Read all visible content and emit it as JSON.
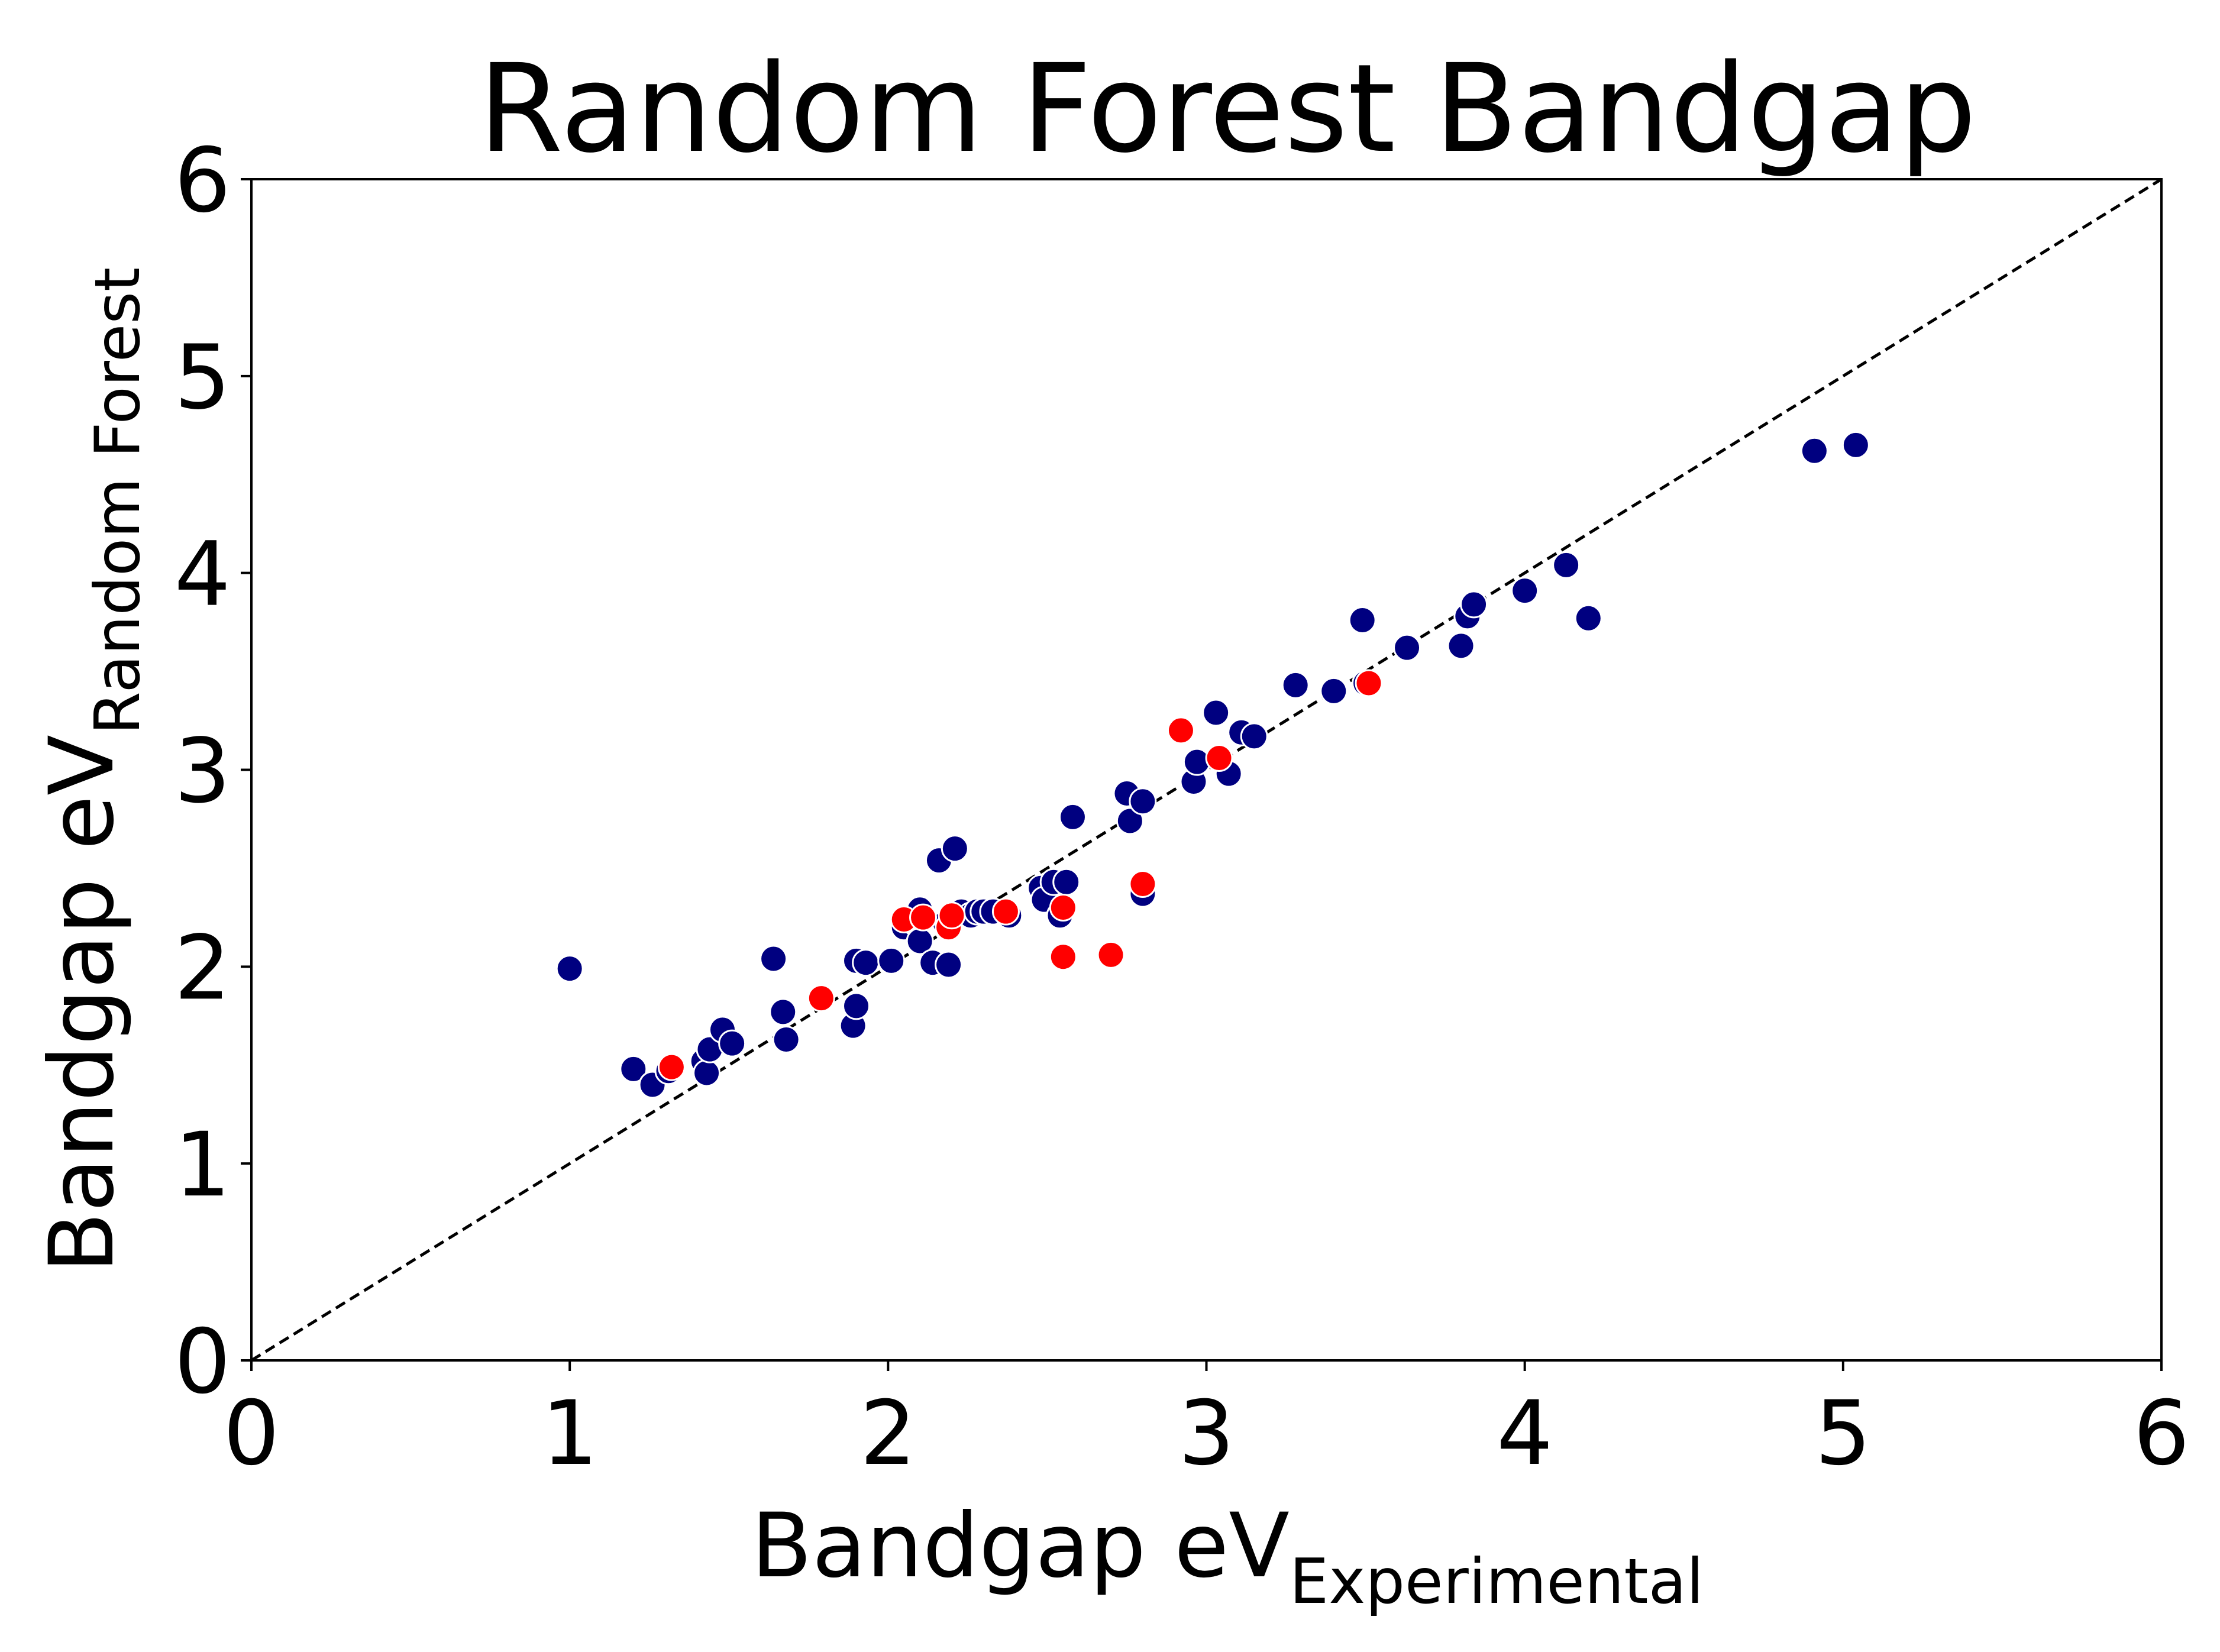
{
  "chart_data": {
    "type": "scatter",
    "title": "Random Forest Bandgap",
    "xlabel": {
      "main": "Bandgap eV",
      "sub": "Experimental"
    },
    "ylabel": {
      "main": "Bandgap eV",
      "sub": "Random Forest"
    },
    "xlim": [
      0,
      6
    ],
    "ylim": [
      0,
      6
    ],
    "xticks": [
      "0",
      "1",
      "2",
      "3",
      "4",
      "5",
      "6"
    ],
    "yticks": [
      "0",
      "1",
      "2",
      "3",
      "4",
      "5",
      "6"
    ],
    "grid": false,
    "legend": "none",
    "reference_line": {
      "style": "dashed",
      "color": "#000000",
      "from": [
        0,
        0
      ],
      "to": [
        6,
        6
      ]
    },
    "series": [
      {
        "color": "#000080",
        "points": [
          [
            1.0,
            1.99
          ],
          [
            1.2,
            1.48
          ],
          [
            1.26,
            1.4
          ],
          [
            1.31,
            1.47
          ],
          [
            1.42,
            1.52
          ],
          [
            1.43,
            1.46
          ],
          [
            1.44,
            1.58
          ],
          [
            1.48,
            1.68
          ],
          [
            1.51,
            1.61
          ],
          [
            1.67,
            1.77
          ],
          [
            1.68,
            1.63
          ],
          [
            1.64,
            2.04
          ],
          [
            1.89,
            1.7
          ],
          [
            1.9,
            1.8
          ],
          [
            1.9,
            2.03
          ],
          [
            1.93,
            2.02
          ],
          [
            2.01,
            2.03
          ],
          [
            2.05,
            2.2
          ],
          [
            2.08,
            2.23
          ],
          [
            2.1,
            2.13
          ],
          [
            2.1,
            2.29
          ],
          [
            2.14,
            2.02
          ],
          [
            2.16,
            2.54
          ],
          [
            2.18,
            2.22
          ],
          [
            2.19,
            2.01
          ],
          [
            2.21,
            2.6
          ],
          [
            2.23,
            2.28
          ],
          [
            2.26,
            2.26
          ],
          [
            2.28,
            2.28
          ],
          [
            2.3,
            2.28
          ],
          [
            2.33,
            2.28
          ],
          [
            2.38,
            2.26
          ],
          [
            2.48,
            2.4
          ],
          [
            2.49,
            2.34
          ],
          [
            2.52,
            2.43
          ],
          [
            2.54,
            2.26
          ],
          [
            2.56,
            2.43
          ],
          [
            2.58,
            2.76
          ],
          [
            2.75,
            2.88
          ],
          [
            2.76,
            2.74
          ],
          [
            2.8,
            2.84
          ],
          [
            2.8,
            2.37
          ],
          [
            2.96,
            2.94
          ],
          [
            2.97,
            3.04
          ],
          [
            3.03,
            3.29
          ],
          [
            3.07,
            2.98
          ],
          [
            3.11,
            3.19
          ],
          [
            3.15,
            3.17
          ],
          [
            3.28,
            3.43
          ],
          [
            3.4,
            3.4
          ],
          [
            3.49,
            3.76
          ],
          [
            3.5,
            3.44
          ],
          [
            3.63,
            3.62
          ],
          [
            3.8,
            3.63
          ],
          [
            3.82,
            3.78
          ],
          [
            3.84,
            3.84
          ],
          [
            4.0,
            3.91
          ],
          [
            4.13,
            4.04
          ],
          [
            4.2,
            3.77
          ],
          [
            4.91,
            4.62
          ],
          [
            5.04,
            4.65
          ]
        ]
      },
      {
        "color": "#ff0000",
        "points": [
          [
            1.32,
            1.49
          ],
          [
            1.79,
            1.84
          ],
          [
            2.05,
            2.24
          ],
          [
            2.11,
            2.25
          ],
          [
            2.19,
            2.2
          ],
          [
            2.2,
            2.26
          ],
          [
            2.37,
            2.28
          ],
          [
            2.55,
            2.3
          ],
          [
            2.55,
            2.05
          ],
          [
            2.7,
            2.06
          ],
          [
            2.8,
            2.42
          ],
          [
            2.92,
            3.2
          ],
          [
            3.04,
            3.06
          ],
          [
            3.51,
            3.44
          ]
        ]
      }
    ]
  }
}
